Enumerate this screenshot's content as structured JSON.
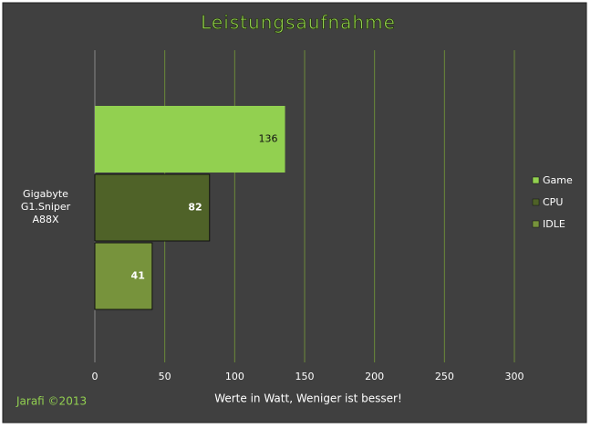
{
  "chart_data": {
    "type": "hbar",
    "title": "Leistungsaufnahme",
    "categories": [
      "Gigabyte\nG1.Sniper\nA88X"
    ],
    "series": [
      {
        "name": "Game",
        "color": "#92d050",
        "values": [
          136
        ]
      },
      {
        "name": "CPU",
        "color": "#4f6228",
        "values": [
          82
        ]
      },
      {
        "name": "IDLE",
        "color": "#77933c",
        "values": [
          41
        ]
      }
    ],
    "xlim": [
      0,
      300
    ],
    "xticks": [
      0,
      50,
      100,
      150,
      200,
      250,
      300
    ],
    "grid": true,
    "xlabel": "Werte in Watt, Weniger ist besser!",
    "legend": "right",
    "footer": "Jarafi  ©2013"
  }
}
